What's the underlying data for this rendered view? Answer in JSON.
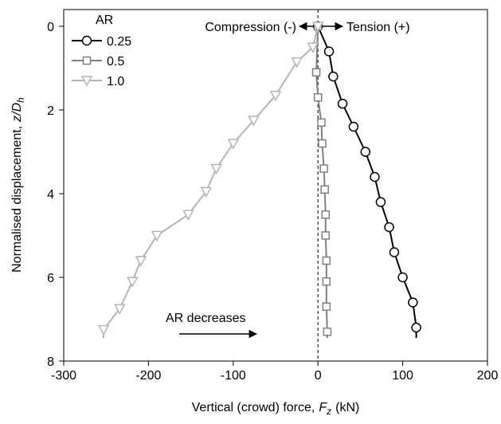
{
  "chart_data": {
    "type": "line",
    "xlabel": "Vertical (crowd) force,",
    "xlabel_var": "F",
    "xlabel_sub": "z",
    "xlabel_unit": "(kN)",
    "ylabel": "Normalised displacement,",
    "ylabel_var": "z/D",
    "ylabel_sub": "h",
    "xlim": [
      -300,
      200
    ],
    "xticks": [
      -300,
      -200,
      -100,
      0,
      100,
      200
    ],
    "ylim": [
      8,
      -0.4
    ],
    "yticks": [
      0,
      2,
      4,
      6,
      8
    ],
    "y_inverted": true,
    "vline": 0,
    "legend_title": "AR",
    "legend": "top-left",
    "annotations": {
      "compression": "Compression (-)",
      "tension": "Tension (+)",
      "trend": "AR decreases"
    },
    "series": [
      {
        "name": "0.25",
        "color": "#000000",
        "marker": "circle",
        "x": [
          0,
          13,
          18,
          29,
          42,
          56,
          67,
          74,
          84,
          90,
          100,
          112,
          116,
          116
        ],
        "values": [
          0,
          0.6,
          1.2,
          1.85,
          2.4,
          3.0,
          3.6,
          4.2,
          4.8,
          5.4,
          6.0,
          6.6,
          7.2,
          7.45
        ]
      },
      {
        "name": "0.5",
        "color": "#808080",
        "marker": "square",
        "x": [
          0,
          -2,
          0,
          4,
          5,
          7,
          8,
          9,
          9,
          10,
          10,
          10,
          11,
          11
        ],
        "values": [
          0,
          1.1,
          1.7,
          2.3,
          2.8,
          3.4,
          3.9,
          4.5,
          5.0,
          5.6,
          6.1,
          6.7,
          7.3,
          7.45
        ]
      },
      {
        "name": "1.0",
        "color": "#b4b4b4",
        "marker": "triangle",
        "x": [
          0,
          -6,
          -25,
          -50,
          -76,
          -100,
          -120,
          -132,
          -153,
          -190,
          -209,
          -219,
          -234,
          -253,
          -253
        ],
        "values": [
          0,
          0.5,
          0.85,
          1.65,
          2.25,
          2.8,
          3.4,
          3.95,
          4.5,
          5.0,
          5.6,
          6.1,
          6.75,
          7.25,
          7.45
        ]
      }
    ]
  }
}
